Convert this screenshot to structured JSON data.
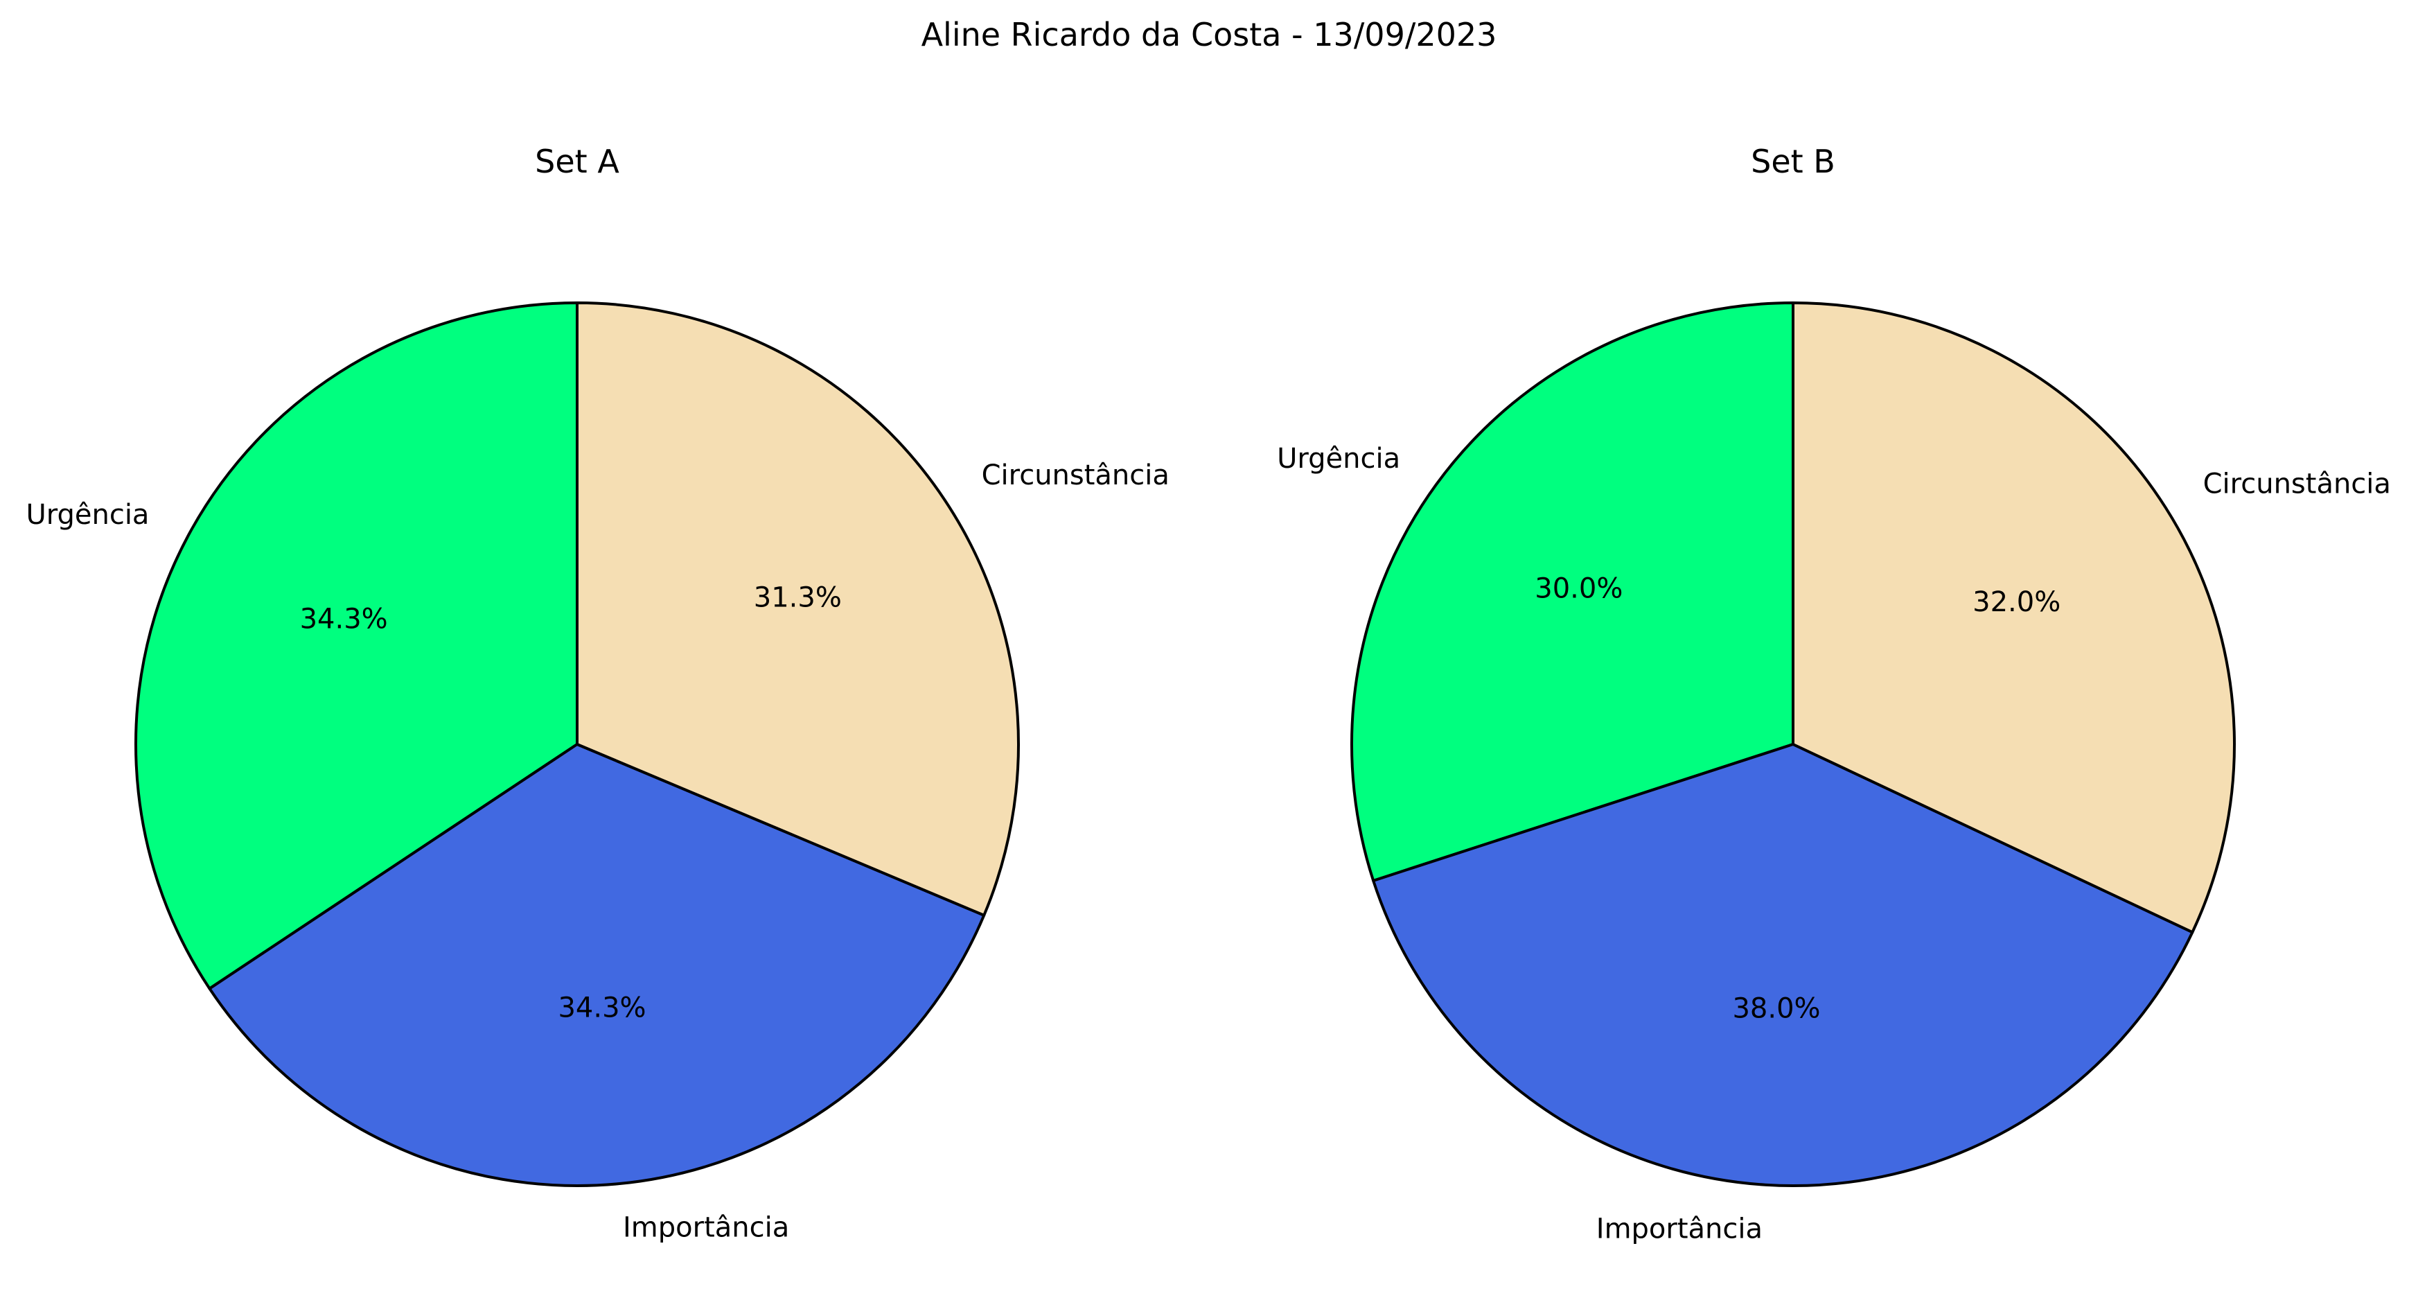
{
  "figure": {
    "title": "Aline Ricardo da Costa - 13/09/2023"
  },
  "chart_data": [
    {
      "type": "pie",
      "title": "Set A",
      "categories": [
        "Urgência",
        "Importância",
        "Circunstância"
      ],
      "values": [
        34.3,
        34.3,
        31.3
      ],
      "value_labels": [
        "34.3%",
        "34.3%",
        "31.3%"
      ],
      "colors": [
        "#00FF7F",
        "#4169E1",
        "#F5DEB3"
      ],
      "start_angle_deg": 90,
      "direction": "counterclockwise"
    },
    {
      "type": "pie",
      "title": "Set B",
      "categories": [
        "Urgência",
        "Importância",
        "Circunstância"
      ],
      "values": [
        30.0,
        38.0,
        32.0
      ],
      "value_labels": [
        "30.0%",
        "38.0%",
        "32.0%"
      ],
      "colors": [
        "#00FF7F",
        "#4169E1",
        "#F5DEB3"
      ],
      "start_angle_deg": 90,
      "direction": "counterclockwise"
    }
  ]
}
